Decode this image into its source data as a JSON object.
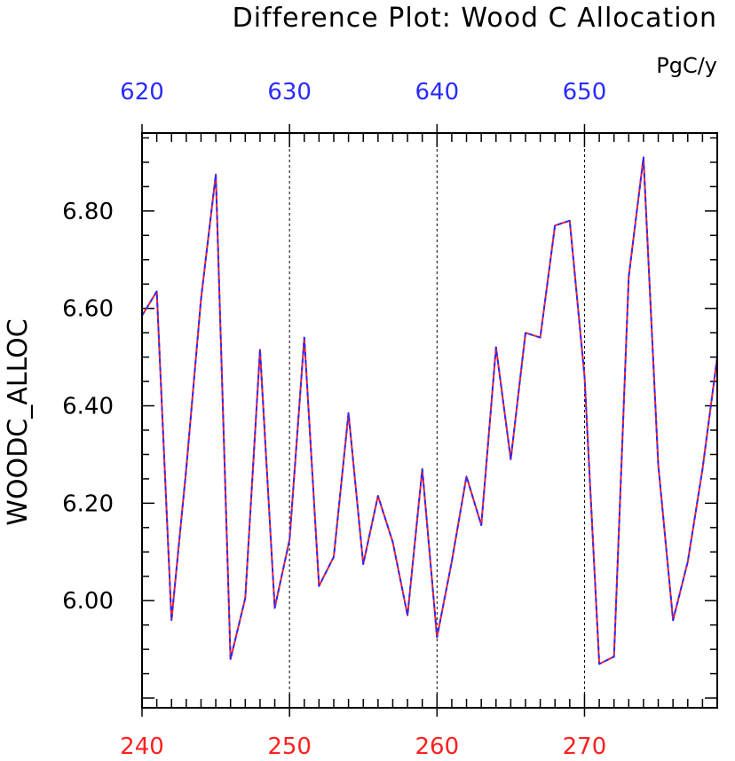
{
  "chart_data": {
    "type": "line",
    "title": "Difference Plot: Wood C Allocation",
    "units": "PgC/y",
    "ylabel": "WOODC_ALLOC",
    "ylim": [
      5.78,
      6.96
    ],
    "y_ticks": [
      "6.00",
      "6.20",
      "6.40",
      "6.60",
      "6.80"
    ],
    "x_bottom": {
      "range": [
        240,
        279
      ],
      "ticks": [
        "240",
        "250",
        "260",
        "270"
      ],
      "color": "#ff2020"
    },
    "x_top": {
      "range": [
        620,
        659
      ],
      "ticks": [
        "620",
        "630",
        "640",
        "650"
      ],
      "color": "#2b2bff"
    },
    "grid": "dashed vertical at labeled ticks",
    "x": [
      240,
      241,
      242,
      243,
      244,
      245,
      246,
      247,
      248,
      249,
      250,
      251,
      252,
      253,
      254,
      255,
      256,
      257,
      258,
      259,
      260,
      261,
      262,
      263,
      264,
      265,
      266,
      267,
      268,
      269,
      270,
      271,
      272,
      273,
      274,
      275,
      276,
      277,
      278,
      279
    ],
    "series": [
      {
        "color": "#ff2020",
        "style": "solid",
        "values": [
          6.585,
          6.635,
          5.96,
          6.27,
          6.62,
          6.875,
          5.88,
          6.005,
          6.515,
          5.985,
          6.125,
          6.54,
          6.03,
          6.09,
          6.385,
          6.075,
          6.215,
          6.12,
          5.97,
          6.27,
          5.925,
          6.08,
          6.255,
          6.155,
          6.52,
          6.29,
          6.55,
          6.54,
          6.77,
          6.78,
          6.46,
          5.87,
          5.885,
          6.665,
          6.91,
          6.28,
          5.96,
          6.08,
          6.27,
          6.5
        ]
      },
      {
        "color": "#2b2bff",
        "style": "dashed",
        "values": [
          6.585,
          6.635,
          5.96,
          6.27,
          6.62,
          6.875,
          5.88,
          6.005,
          6.515,
          5.985,
          6.125,
          6.54,
          6.03,
          6.09,
          6.385,
          6.075,
          6.215,
          6.12,
          5.97,
          6.27,
          5.925,
          6.08,
          6.255,
          6.155,
          6.52,
          6.29,
          6.55,
          6.54,
          6.77,
          6.78,
          6.46,
          5.87,
          5.885,
          6.665,
          6.91,
          6.28,
          5.96,
          6.08,
          6.27,
          6.5
        ]
      }
    ]
  }
}
